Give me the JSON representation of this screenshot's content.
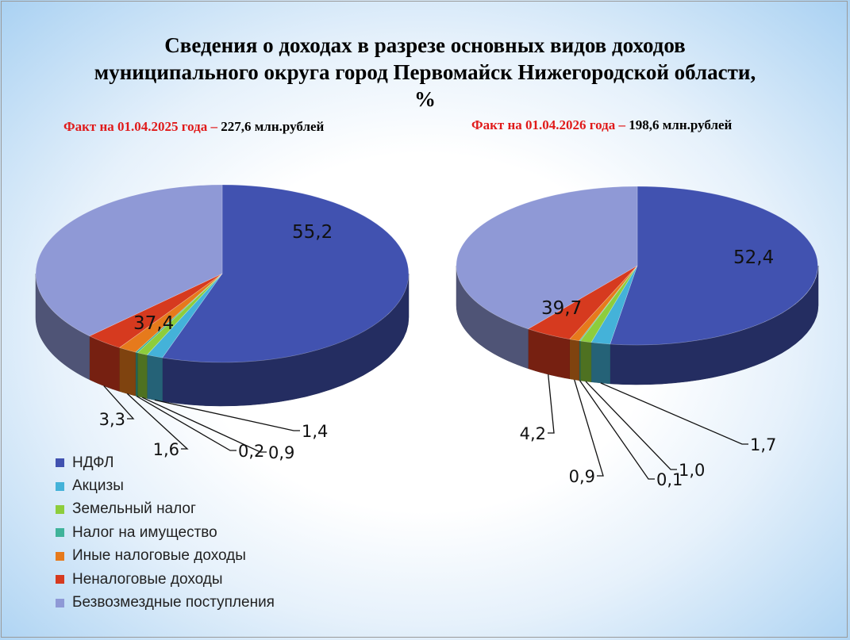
{
  "title_lines": [
    "Сведения о доходах в разрезе основных видов доходов",
    "муниципального округа город Первомайск  Нижегородской области,",
    "%"
  ],
  "subtitles": {
    "left": {
      "red": "Факт на 01.04.2025 года – ",
      "black": "227,6 млн.рублей"
    },
    "right": {
      "red": "Факт на 01.04.2026 года – ",
      "black": "198,6 млн.рублей"
    }
  },
  "chart_data": [
    {
      "type": "pie",
      "title": "Факт на 01.04.2025 года – 227,6 млн.рублей",
      "categories": [
        "НДФЛ",
        "Акцизы",
        "Земельный налог",
        "Налог на имущество",
        "Иные налоговые доходы",
        "Неналоговые доходы",
        "Безвозмездные поступления"
      ],
      "values": [
        55.2,
        1.4,
        0.9,
        0.2,
        1.6,
        3.3,
        37.4
      ],
      "labels": [
        "55,2",
        "1,4",
        "0,9",
        "0,2",
        "1,6",
        "3,3",
        "37,4"
      ],
      "colors": [
        "#4152b0",
        "#44b2d9",
        "#8dcd3c",
        "#3fb39a",
        "#e67a1c",
        "#d63a1f",
        "#8f99d6"
      ],
      "legend": "bottom-left"
    },
    {
      "type": "pie",
      "title": "Факт на 01.04.2026 года – 198,6 млн.рублей",
      "categories": [
        "НДФЛ",
        "Акцизы",
        "Земельный налог",
        "Налог на имущество",
        "Иные налоговые доходы",
        "Неналоговые доходы",
        "Безвозмездные поступления"
      ],
      "values": [
        52.4,
        1.7,
        1.0,
        0.1,
        0.9,
        4.2,
        39.7
      ],
      "labels": [
        "52,4",
        "1,7",
        "1,0",
        "0,1",
        "0,9",
        "4,2",
        "39,7"
      ],
      "colors": [
        "#4152b0",
        "#44b2d9",
        "#8dcd3c",
        "#3fb39a",
        "#e67a1c",
        "#d63a1f",
        "#8f99d6"
      ]
    }
  ]
}
